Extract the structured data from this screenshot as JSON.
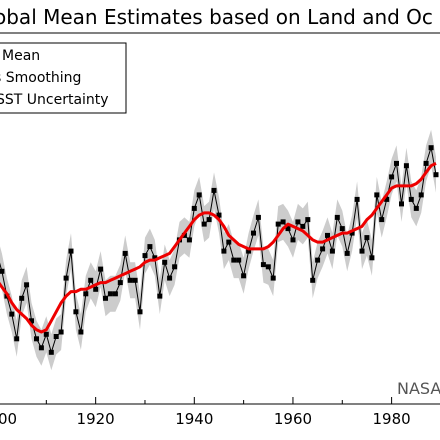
{
  "chart_data": {
    "type": "line",
    "title": "obal Mean Estimates based on Land and Oc",
    "credit": "NASA",
    "legend": {
      "placement": "top-left",
      "entries": [
        "Mean",
        "s Smoothing",
        "SST Uncertainty"
      ]
    },
    "x_ticks": [
      "00",
      "1920",
      "1940",
      "1960",
      "1980"
    ],
    "xlim": [
      1900,
      1989
    ],
    "ylim": [
      -0.75,
      0.9
    ],
    "grid": false,
    "series": [
      {
        "name": "Mean",
        "style": "black line with square markers",
        "color": "#000000",
        "x": [
          1900,
          1901,
          1902,
          1903,
          1904,
          1905,
          1906,
          1907,
          1908,
          1909,
          1910,
          1911,
          1912,
          1913,
          1914,
          1915,
          1916,
          1917,
          1918,
          1919,
          1920,
          1921,
          1922,
          1923,
          1924,
          1925,
          1926,
          1927,
          1928,
          1929,
          1930,
          1931,
          1932,
          1933,
          1934,
          1935,
          1936,
          1937,
          1938,
          1939,
          1940,
          1941,
          1942,
          1943,
          1944,
          1945,
          1946,
          1947,
          1948,
          1949,
          1950,
          1951,
          1952,
          1953,
          1954,
          1955,
          1956,
          1957,
          1958,
          1959,
          1960,
          1961,
          1962,
          1963,
          1964,
          1965,
          1966,
          1967,
          1968,
          1969,
          1970,
          1971,
          1972,
          1973,
          1974,
          1975,
          1976,
          1977,
          1978,
          1979,
          1980,
          1981,
          1982,
          1983,
          1984,
          1985,
          1986,
          1987,
          1988,
          1989
        ],
        "y": [
          -0.08,
          -0.16,
          -0.27,
          -0.35,
          -0.46,
          -0.28,
          -0.22,
          -0.38,
          -0.46,
          -0.5,
          -0.44,
          -0.52,
          -0.45,
          -0.43,
          -0.19,
          -0.07,
          -0.34,
          -0.43,
          -0.26,
          -0.2,
          -0.24,
          -0.15,
          -0.28,
          -0.26,
          -0.26,
          -0.21,
          -0.08,
          -0.2,
          -0.2,
          -0.34,
          -0.09,
          -0.05,
          -0.1,
          -0.27,
          -0.12,
          -0.19,
          -0.14,
          -0.02,
          0.0,
          -0.02,
          0.12,
          0.18,
          0.05,
          0.07,
          0.2,
          0.09,
          -0.07,
          -0.03,
          -0.11,
          -0.11,
          -0.18,
          -0.07,
          0.01,
          0.08,
          -0.13,
          -0.14,
          -0.19,
          0.05,
          0.06,
          0.03,
          -0.02,
          0.06,
          0.04,
          0.07,
          -0.2,
          -0.11,
          -0.06,
          0.0,
          -0.07,
          0.08,
          0.03,
          -0.08,
          0.01,
          0.16,
          -0.07,
          -0.01,
          -0.1,
          0.18,
          0.07,
          0.16,
          0.26,
          0.32,
          0.14,
          0.31,
          0.16,
          0.12,
          0.18,
          0.32,
          0.39,
          0.27
        ]
      },
      {
        "name": "s Smoothing",
        "style": "thick red line",
        "color": "#ee0000",
        "x": [
          1900,
          1901,
          1902,
          1903,
          1904,
          1905,
          1906,
          1907,
          1908,
          1909,
          1910,
          1911,
          1912,
          1913,
          1914,
          1915,
          1916,
          1917,
          1918,
          1919,
          1920,
          1921,
          1922,
          1923,
          1924,
          1925,
          1926,
          1927,
          1928,
          1929,
          1930,
          1931,
          1932,
          1933,
          1934,
          1935,
          1936,
          1937,
          1938,
          1939,
          1940,
          1941,
          1942,
          1943,
          1944,
          1945,
          1946,
          1947,
          1948,
          1949,
          1950,
          1951,
          1952,
          1953,
          1954,
          1955,
          1956,
          1957,
          1958,
          1959,
          1960,
          1961,
          1962,
          1963,
          1964,
          1965,
          1966,
          1967,
          1968,
          1969,
          1970,
          1971,
          1972,
          1973,
          1974,
          1975,
          1976,
          1977,
          1978,
          1979,
          1980,
          1981,
          1982,
          1983,
          1984,
          1985,
          1986,
          1987,
          1988,
          1989
        ],
        "y": [
          -0.2,
          -0.23,
          -0.26,
          -0.3,
          -0.33,
          -0.35,
          -0.37,
          -0.4,
          -0.42,
          -0.43,
          -0.42,
          -0.38,
          -0.34,
          -0.3,
          -0.27,
          -0.25,
          -0.25,
          -0.24,
          -0.24,
          -0.23,
          -0.22,
          -0.21,
          -0.21,
          -0.2,
          -0.19,
          -0.18,
          -0.17,
          -0.16,
          -0.15,
          -0.14,
          -0.12,
          -0.11,
          -0.11,
          -0.1,
          -0.09,
          -0.08,
          -0.05,
          -0.02,
          0.01,
          0.04,
          0.07,
          0.09,
          0.1,
          0.1,
          0.09,
          0.07,
          0.04,
          0.0,
          -0.02,
          -0.04,
          -0.05,
          -0.06,
          -0.06,
          -0.06,
          -0.06,
          -0.05,
          -0.03,
          0.0,
          0.03,
          0.05,
          0.04,
          0.03,
          0.02,
          0.0,
          -0.02,
          -0.03,
          -0.03,
          -0.02,
          -0.01,
          0.0,
          0.01,
          0.01,
          0.02,
          0.03,
          0.04,
          0.07,
          0.09,
          0.12,
          0.15,
          0.18,
          0.21,
          0.22,
          0.22,
          0.22,
          0.22,
          0.23,
          0.25,
          0.28,
          0.31,
          0.32
        ]
      },
      {
        "name": "SST Uncertainty",
        "style": "grey shaded band",
        "color": "#cccccc",
        "half_width": 0.08
      }
    ]
  }
}
